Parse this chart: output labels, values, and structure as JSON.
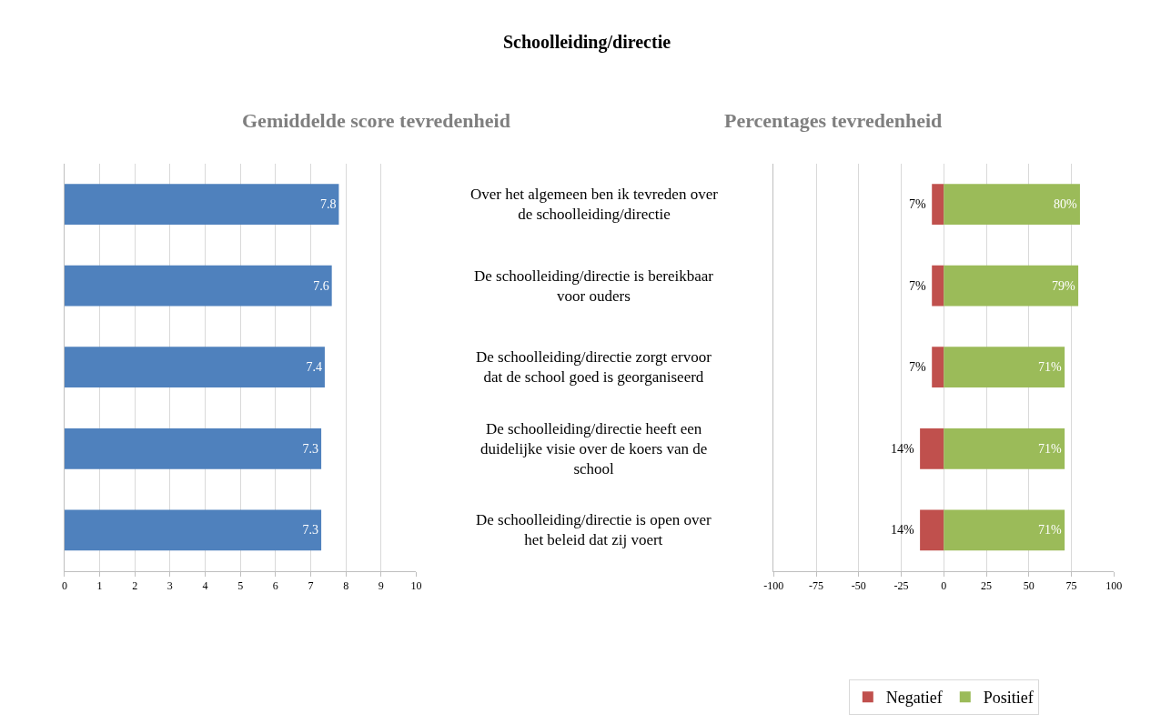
{
  "chart_data": [
    {
      "type": "bar",
      "orientation": "horizontal",
      "title": "Gemiddelde score tevredenheid",
      "annotations": [
        "Schoolleiding/directie"
      ],
      "categories": [
        null,
        null,
        null,
        null,
        null
      ],
      "values": [
        7.8,
        7.6,
        7.4,
        7.3,
        7.3
      ],
      "color": "#4f81bd",
      "data_labels": true,
      "xlim": [
        0,
        10
      ],
      "xticks": [
        0,
        1,
        2,
        3,
        4,
        5,
        6,
        7,
        8,
        9,
        10
      ],
      "grid": "x",
      "tick_labels": "x",
      "legend": false
    },
    {
      "type": "bar",
      "orientation": "horizontal",
      "stacked": true,
      "title": "Percentages tevredenheid",
      "categories": [
        "Over het algemeen ben ik tevreden over de schoolleiding/directie",
        "De schoolleiding/directie is bereikbaar voor ouders",
        "De schoolleiding/directie zorgt ervoor dat de school goed is georganiseerd",
        "De schoolleiding/directie heeft een duidelijke visie over de koers van de school",
        "De schoolleiding/directie is open over het beleid dat zij voert"
      ],
      "series": [
        {
          "name": "Negatief",
          "color": "#c0504d",
          "base": [
            -7,
            -7,
            -7,
            -14,
            -14
          ],
          "values": [
            7,
            7,
            7,
            14,
            14
          ],
          "value_labels": [
            "7%",
            "7%",
            "7%",
            "14%",
            "14%"
          ]
        },
        {
          "name": "Positief",
          "color": "#9bbb59",
          "values": [
            80,
            79,
            71,
            71,
            71
          ],
          "value_labels": [
            "80%",
            "79%",
            "71%",
            "71%",
            "71%"
          ]
        }
      ],
      "xlim": [
        -100,
        100
      ],
      "xticks": [
        -100,
        -75,
        -50,
        -25,
        0,
        25,
        50,
        75,
        100
      ],
      "grid": "x",
      "legend": "bottom"
    }
  ]
}
